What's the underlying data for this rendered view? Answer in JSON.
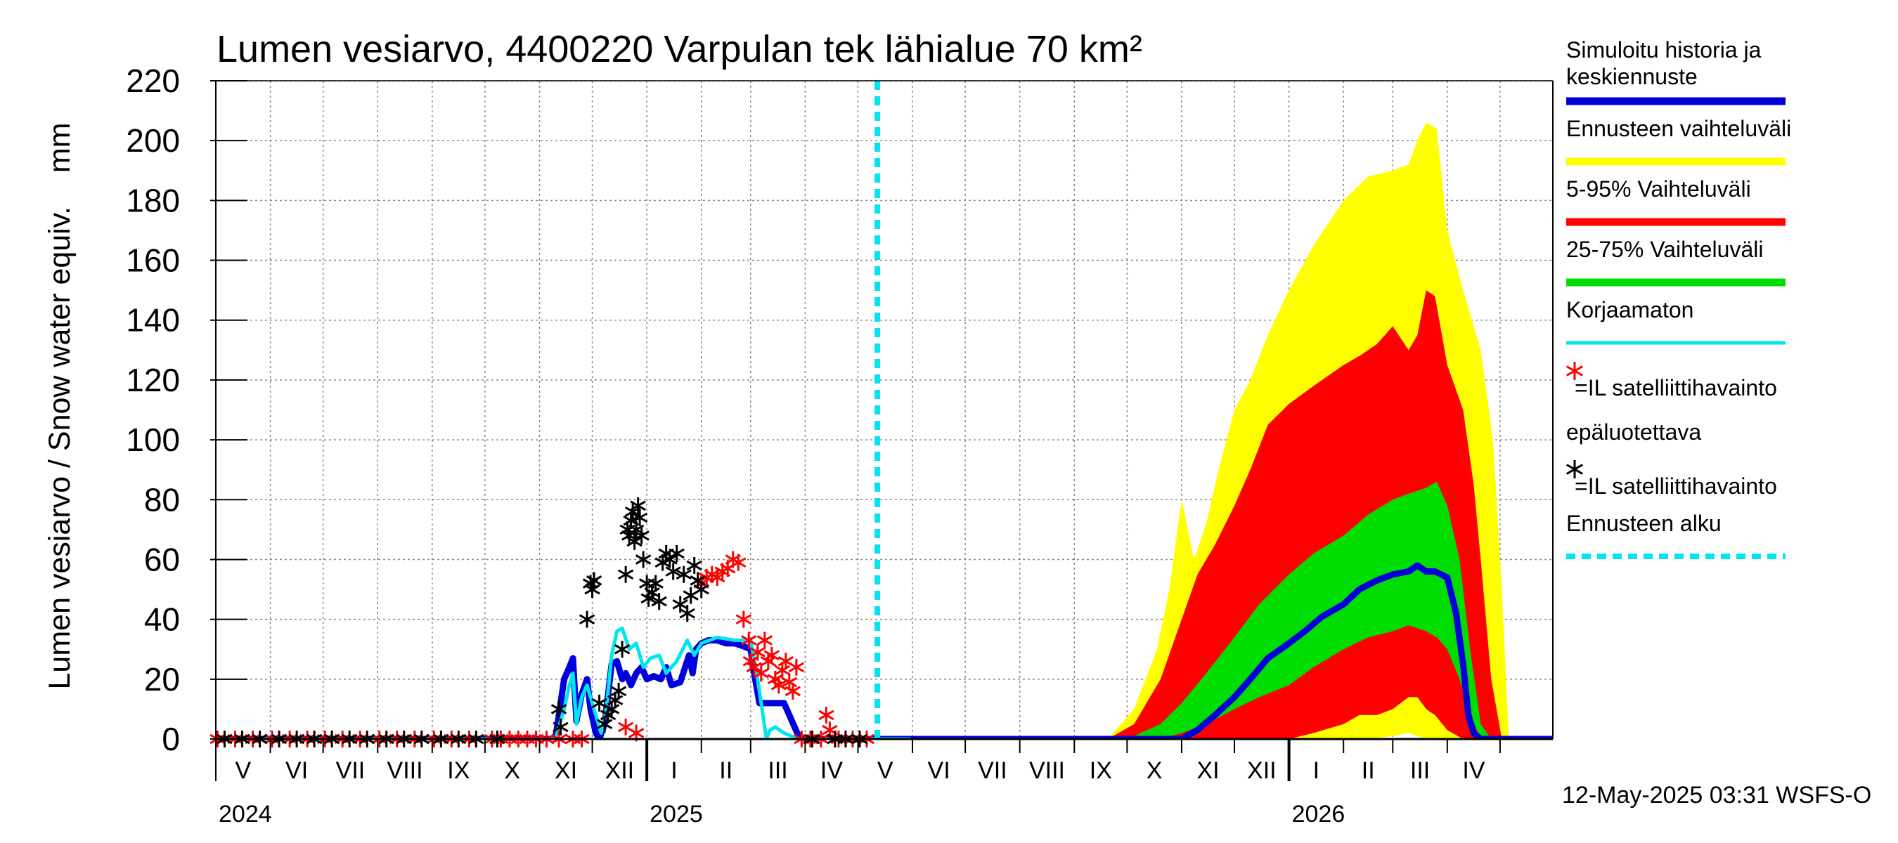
{
  "chart_data": {
    "type": "area",
    "title": "Lumen vesiarvo, 4400220 Varpulan tek lähialue 70 km²",
    "ylabel": "Lumen vesiarvo / Snow water equiv.    mm",
    "ylim": [
      0,
      220
    ],
    "yticks": [
      0,
      20,
      40,
      60,
      80,
      100,
      120,
      140,
      160,
      180,
      200,
      220
    ],
    "xlim": [
      "2024-05-01",
      "2026-05-31"
    ],
    "month_labels": [
      "V",
      "VI",
      "VII",
      "VIII",
      "IX",
      "X",
      "XI",
      "XII",
      "I",
      "II",
      "III",
      "IV",
      "V",
      "VI",
      "VII",
      "VIII",
      "IX",
      "X",
      "XI",
      "XII",
      "I",
      "II",
      "III",
      "IV"
    ],
    "year_labels": [
      {
        "label": "2024",
        "date": "2024-05-01"
      },
      {
        "label": "2025",
        "date": "2025-01-01"
      },
      {
        "label": "2026",
        "date": "2026-01-01"
      }
    ],
    "forecast_start": "2025-05-12",
    "grid": true,
    "legend_position": "right",
    "legend": [
      {
        "label": "Simuloitu historia ja keskiennuste",
        "color": "#0000dd",
        "kind": "line"
      },
      {
        "label": "Ennusteen vaihteluväli",
        "color": "#ffff00",
        "kind": "line"
      },
      {
        "label": "5-95% Vaihteluväli",
        "color": "#ff0000",
        "kind": "line"
      },
      {
        "label": "25-75% Vaihteluväli",
        "color": "#00dd00",
        "kind": "line"
      },
      {
        "label": "Korjaamaton",
        "color": "#00e5ee",
        "kind": "line"
      },
      {
        "label": "=IL satelliittihavainto",
        "color": "#ff0000",
        "kind": "star"
      },
      {
        "label": "epäluotettava",
        "color": "#000000",
        "kind": "text"
      },
      {
        "label": "=IL satelliittihavainto",
        "color": "#000000",
        "kind": "star"
      },
      {
        "label": "Ennusteen alku",
        "color": "#00e5ee",
        "kind": "dashed"
      }
    ],
    "footer": "12-May-2025 03:31 WSFS-O",
    "series": [
      {
        "name": "Simuloitu historia ja keskiennuste",
        "color": "#0000dd",
        "x": [
          "2024-05-01",
          "2024-10-20",
          "2024-11-10",
          "2024-11-12",
          "2024-11-15",
          "2024-11-18",
          "2024-11-20",
          "2024-11-22",
          "2024-11-25",
          "2024-11-28",
          "2024-11-30",
          "2024-12-03",
          "2024-12-05",
          "2024-12-08",
          "2024-12-10",
          "2024-12-12",
          "2024-12-15",
          "2024-12-18",
          "2024-12-20",
          "2024-12-23",
          "2024-12-26",
          "2024-12-29",
          "2025-01-01",
          "2025-01-05",
          "2025-01-09",
          "2025-01-12",
          "2025-01-15",
          "2025-01-20",
          "2025-01-25",
          "2025-01-27",
          "2025-01-29",
          "2025-02-01",
          "2025-02-05",
          "2025-02-10",
          "2025-02-15",
          "2025-02-20",
          "2025-02-25",
          "2025-03-01",
          "2025-03-03",
          "2025-03-06",
          "2025-03-10",
          "2025-03-15",
          "2025-03-20",
          "2025-03-23",
          "2025-03-26",
          "2025-03-29",
          "2025-04-01",
          "2025-05-12",
          "2025-10-01",
          "2025-10-15",
          "2025-11-01",
          "2025-11-10",
          "2025-11-20",
          "2025-12-01",
          "2025-12-10",
          "2025-12-20",
          "2026-01-01",
          "2026-01-10",
          "2026-01-20",
          "2026-02-01",
          "2026-02-10",
          "2026-02-20",
          "2026-03-01",
          "2026-03-10",
          "2026-03-15",
          "2026-03-20",
          "2026-03-25",
          "2026-04-01",
          "2026-04-06",
          "2026-04-10",
          "2026-04-13",
          "2026-04-16",
          "2026-04-20",
          "2026-05-31"
        ],
        "y": [
          0,
          0,
          0,
          8,
          20,
          24,
          27,
          6,
          15,
          20,
          10,
          2,
          0,
          5,
          15,
          25,
          26,
          20,
          22,
          18,
          22,
          24,
          20,
          21,
          20,
          24,
          18,
          19,
          28,
          22,
          30,
          32,
          33,
          33,
          32,
          32,
          31,
          30,
          22,
          12,
          12,
          12,
          12,
          8,
          4,
          0,
          0,
          0,
          0,
          0,
          0,
          3,
          8,
          14,
          20,
          27,
          32,
          36,
          41,
          45,
          50,
          53,
          55,
          56,
          58,
          56,
          56,
          54,
          42,
          25,
          8,
          2,
          0,
          0
        ]
      },
      {
        "name": "Korjaamaton",
        "color": "#00e5ee",
        "x": [
          "2024-05-01",
          "2024-11-10",
          "2024-11-15",
          "2024-11-18",
          "2024-11-20",
          "2024-11-22",
          "2024-11-25",
          "2024-11-28",
          "2024-12-03",
          "2024-12-06",
          "2024-12-09",
          "2024-12-12",
          "2024-12-15",
          "2024-12-18",
          "2024-12-22",
          "2024-12-26",
          "2024-12-30",
          "2025-01-03",
          "2025-01-08",
          "2025-01-12",
          "2025-01-18",
          "2025-01-24",
          "2025-01-28",
          "2025-02-01",
          "2025-02-10",
          "2025-02-20",
          "2025-03-01",
          "2025-03-05",
          "2025-03-08",
          "2025-03-10",
          "2025-03-12",
          "2025-03-15",
          "2025-03-20",
          "2025-03-28",
          "2025-04-01",
          "2025-05-31"
        ],
        "y": [
          0,
          0,
          10,
          18,
          22,
          5,
          14,
          18,
          8,
          2,
          10,
          28,
          36,
          37,
          30,
          32,
          24,
          27,
          28,
          22,
          26,
          33,
          28,
          32,
          34,
          33,
          33,
          20,
          8,
          0,
          3,
          4,
          2,
          0,
          0,
          0
        ]
      }
    ],
    "bands": [
      {
        "name": "Ennusteen vaihteluväli",
        "color": "#ffff00",
        "x": [
          "2025-09-20",
          "2025-10-05",
          "2025-10-18",
          "2025-10-25",
          "2025-11-01",
          "2025-11-08",
          "2025-11-15",
          "2025-11-22",
          "2025-12-01",
          "2025-12-10",
          "2025-12-20",
          "2026-01-01",
          "2026-01-15",
          "2026-02-01",
          "2026-02-15",
          "2026-03-01",
          "2026-03-10",
          "2026-03-15",
          "2026-03-20",
          "2026-03-26",
          "2026-04-01",
          "2026-04-10",
          "2026-04-20",
          "2026-04-27",
          "2026-05-02",
          "2026-05-06",
          "2026-05-31"
        ],
        "low": [
          0,
          0,
          0,
          0,
          0,
          0,
          0,
          0,
          0,
          0,
          0,
          0,
          0,
          0,
          0,
          1,
          2,
          1,
          0,
          0,
          0,
          0,
          0,
          0,
          0,
          0,
          0
        ],
        "high": [
          0,
          10,
          30,
          50,
          80,
          60,
          72,
          90,
          110,
          120,
          135,
          150,
          165,
          180,
          188,
          190,
          192,
          200,
          206,
          204,
          170,
          150,
          130,
          100,
          50,
          0,
          0
        ]
      },
      {
        "name": "5-95% Vaihteluväli",
        "color": "#ff0000",
        "x": [
          "2025-09-20",
          "2025-10-05",
          "2025-10-20",
          "2025-11-01",
          "2025-11-10",
          "2025-11-20",
          "2025-12-01",
          "2025-12-10",
          "2025-12-20",
          "2026-01-01",
          "2026-01-15",
          "2026-02-01",
          "2026-02-10",
          "2026-02-20",
          "2026-03-01",
          "2026-03-10",
          "2026-03-15",
          "2026-03-20",
          "2026-03-25",
          "2026-04-01",
          "2026-04-10",
          "2026-04-16",
          "2026-04-20",
          "2026-04-26",
          "2026-05-02",
          "2026-05-31"
        ],
        "low": [
          0,
          0,
          0,
          0,
          0,
          0,
          0,
          0,
          0,
          0,
          2,
          5,
          8,
          8,
          10,
          14,
          14,
          10,
          8,
          3,
          0,
          0,
          0,
          0,
          0,
          0
        ],
        "high": [
          0,
          5,
          20,
          40,
          55,
          65,
          78,
          90,
          105,
          112,
          118,
          125,
          128,
          132,
          138,
          130,
          135,
          150,
          148,
          125,
          110,
          85,
          60,
          20,
          0,
          0
        ]
      },
      {
        "name": "25-75% Vaihteluväli",
        "color": "#00dd00",
        "x": [
          "2025-10-01",
          "2025-10-20",
          "2025-11-01",
          "2025-11-15",
          "2025-12-01",
          "2025-12-15",
          "2026-01-01",
          "2026-01-15",
          "2026-02-01",
          "2026-02-15",
          "2026-03-01",
          "2026-03-10",
          "2026-03-20",
          "2026-03-26",
          "2026-04-01",
          "2026-04-08",
          "2026-04-14",
          "2026-04-20",
          "2026-04-26",
          "2026-05-31"
        ],
        "low": [
          0,
          0,
          2,
          5,
          10,
          14,
          18,
          24,
          30,
          34,
          36,
          38,
          36,
          34,
          30,
          20,
          8,
          0,
          0,
          0
        ],
        "high": [
          0,
          5,
          12,
          22,
          34,
          45,
          55,
          62,
          68,
          75,
          80,
          82,
          84,
          86,
          78,
          60,
          30,
          5,
          0,
          0
        ]
      }
    ],
    "observations": {
      "reliable": {
        "color": "#ff0000",
        "points": [
          [
            "2024-05-02",
            0
          ],
          [
            "2024-05-12",
            0
          ],
          [
            "2024-05-22",
            0
          ],
          [
            "2024-06-02",
            0
          ],
          [
            "2024-06-12",
            0
          ],
          [
            "2024-06-22",
            0
          ],
          [
            "2024-07-02",
            0
          ],
          [
            "2024-07-12",
            0
          ],
          [
            "2024-07-22",
            0
          ],
          [
            "2024-08-02",
            0
          ],
          [
            "2024-08-12",
            0
          ],
          [
            "2024-08-22",
            0
          ],
          [
            "2024-09-02",
            0
          ],
          [
            "2024-09-12",
            0
          ],
          [
            "2024-09-22",
            0
          ],
          [
            "2024-10-05",
            0
          ],
          [
            "2024-10-10",
            0
          ],
          [
            "2024-10-15",
            0
          ],
          [
            "2024-10-20",
            0
          ],
          [
            "2024-10-25",
            0
          ],
          [
            "2024-10-30",
            0
          ],
          [
            "2024-11-05",
            0
          ],
          [
            "2024-11-12",
            0
          ],
          [
            "2024-11-20",
            0
          ],
          [
            "2024-11-25",
            0
          ],
          [
            "2024-12-20",
            4
          ],
          [
            "2024-12-26",
            2
          ],
          [
            "2025-02-01",
            52
          ],
          [
            "2025-02-04",
            54
          ],
          [
            "2025-02-07",
            55
          ],
          [
            "2025-02-10",
            54
          ],
          [
            "2025-02-13",
            56
          ],
          [
            "2025-02-16",
            57
          ],
          [
            "2025-02-19",
            60
          ],
          [
            "2025-02-22",
            59
          ],
          [
            "2025-02-25",
            40
          ],
          [
            "2025-02-28",
            33
          ],
          [
            "2025-03-01",
            26
          ],
          [
            "2025-03-03",
            24
          ],
          [
            "2025-03-05",
            29
          ],
          [
            "2025-03-07",
            22
          ],
          [
            "2025-03-09",
            33
          ],
          [
            "2025-03-11",
            26
          ],
          [
            "2025-03-13",
            28
          ],
          [
            "2025-03-15",
            20
          ],
          [
            "2025-03-17",
            18
          ],
          [
            "2025-03-19",
            23
          ],
          [
            "2025-03-21",
            26
          ],
          [
            "2025-03-23",
            19
          ],
          [
            "2025-03-25",
            16
          ],
          [
            "2025-03-27",
            24
          ],
          [
            "2025-03-30",
            0
          ],
          [
            "2025-04-04",
            0
          ],
          [
            "2025-04-10",
            0
          ],
          [
            "2025-04-13",
            8
          ],
          [
            "2025-04-15",
            3
          ],
          [
            "2025-04-20",
            0
          ],
          [
            "2025-04-28",
            0
          ],
          [
            "2025-05-06",
            0
          ]
        ]
      },
      "unreliable": {
        "color": "#000000",
        "points": [
          [
            "2024-05-06",
            0
          ],
          [
            "2024-05-16",
            0
          ],
          [
            "2024-05-26",
            0
          ],
          [
            "2024-06-06",
            0
          ],
          [
            "2024-06-16",
            0
          ],
          [
            "2024-06-26",
            0
          ],
          [
            "2024-07-06",
            0
          ],
          [
            "2024-07-16",
            0
          ],
          [
            "2024-07-26",
            0
          ],
          [
            "2024-08-06",
            0
          ],
          [
            "2024-08-16",
            0
          ],
          [
            "2024-08-26",
            0
          ],
          [
            "2024-09-06",
            0
          ],
          [
            "2024-09-16",
            0
          ],
          [
            "2024-09-26",
            0
          ],
          [
            "2024-10-08",
            0
          ],
          [
            "2024-11-12",
            10
          ],
          [
            "2024-11-13",
            4
          ],
          [
            "2024-11-28",
            40
          ],
          [
            "2024-11-30",
            52
          ],
          [
            "2024-12-01",
            50
          ],
          [
            "2024-12-02",
            53
          ],
          [
            "2024-12-05",
            12
          ],
          [
            "2024-12-08",
            5
          ],
          [
            "2024-12-10",
            8
          ],
          [
            "2024-12-12",
            10
          ],
          [
            "2024-12-14",
            13
          ],
          [
            "2024-12-16",
            16
          ],
          [
            "2024-12-18",
            30
          ],
          [
            "2024-12-20",
            55
          ],
          [
            "2024-12-21",
            70
          ],
          [
            "2024-12-22",
            68
          ],
          [
            "2024-12-23",
            73
          ],
          [
            "2024-12-24",
            76
          ],
          [
            "2024-12-25",
            66
          ],
          [
            "2024-12-26",
            70
          ],
          [
            "2024-12-27",
            78
          ],
          [
            "2024-12-28",
            74
          ],
          [
            "2024-12-29",
            68
          ],
          [
            "2024-12-30",
            60
          ],
          [
            "2025-01-01",
            52
          ],
          [
            "2025-01-02",
            47
          ],
          [
            "2025-01-04",
            49
          ],
          [
            "2025-01-06",
            52
          ],
          [
            "2025-01-08",
            46
          ],
          [
            "2025-01-10",
            59
          ],
          [
            "2025-01-12",
            62
          ],
          [
            "2025-01-14",
            60
          ],
          [
            "2025-01-16",
            56
          ],
          [
            "2025-01-18",
            62
          ],
          [
            "2025-01-20",
            45
          ],
          [
            "2025-01-22",
            55
          ],
          [
            "2025-01-24",
            42
          ],
          [
            "2025-01-26",
            48
          ],
          [
            "2025-01-28",
            58
          ],
          [
            "2025-01-30",
            53
          ],
          [
            "2025-02-01",
            50
          ],
          [
            "2025-04-05",
            0
          ],
          [
            "2025-04-18",
            0
          ],
          [
            "2025-04-24",
            0
          ],
          [
            "2025-05-02",
            0
          ]
        ]
      }
    }
  }
}
